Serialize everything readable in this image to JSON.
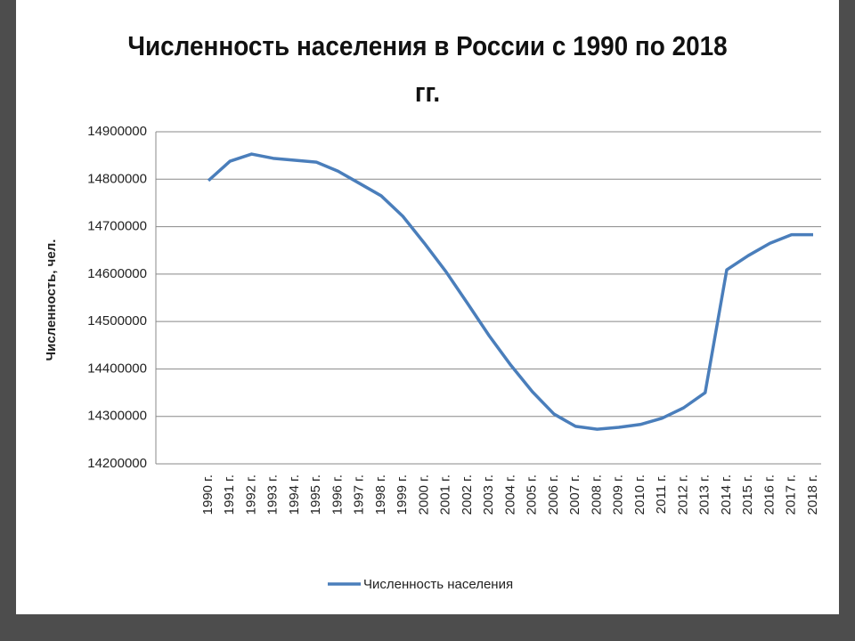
{
  "chart_data": {
    "type": "line",
    "title": "Численность населения в России с 1990 по 2018 гг.",
    "y_label": "Численность, чел.",
    "categories": [
      "1990 г.",
      "1991 г.",
      "1992 г.",
      "1993 г.",
      "1994 г.",
      "1995 г.",
      "1996 г.",
      "1997 г.",
      "1998 г.",
      "1999 г.",
      "2000 г.",
      "2001 г.",
      "2002 г.",
      "2003 г.",
      "2004 г.",
      "2005 г.",
      "2006 г.",
      "2007 г.",
      "2008 г.",
      "2009 г.",
      "2010 г.",
      "2011 г.",
      "2012 г.",
      "2013 г.",
      "2014 г.",
      "2015 г.",
      "2016 г.",
      "2017 г.",
      "2018 г."
    ],
    "series": [
      {
        "name": "Численность населения",
        "color": "#4a7ebb",
        "values": [
          14797000,
          14838000,
          14853000,
          14844000,
          14840000,
          14836000,
          14817000,
          14791000,
          14765000,
          14722000,
          14665000,
          14605000,
          14538000,
          14470000,
          14408000,
          14352000,
          14305000,
          14279000,
          14273000,
          14277000,
          14283000,
          14296000,
          14318000,
          14350000,
          14609000,
          14639000,
          14665000,
          14683000,
          14683000
        ]
      }
    ],
    "ylim": [
      14200000,
      14900000
    ],
    "yticks": [
      14200000,
      14300000,
      14400000,
      14500000,
      14600000,
      14700000,
      14800000,
      14900000
    ],
    "grid": true,
    "legend": "bottom"
  }
}
